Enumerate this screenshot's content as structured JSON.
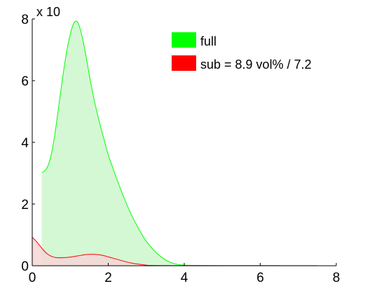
{
  "chart_data": {
    "type": "area",
    "exponent_label": "x 10",
    "xlim": [
      0,
      8
    ],
    "ylim": [
      0,
      8
    ],
    "x_ticks": [
      0,
      2,
      4,
      6,
      8
    ],
    "y_ticks": [
      0,
      2,
      4,
      6,
      8
    ],
    "grid": false,
    "legend_position": "top-right",
    "series": [
      {
        "name": "full",
        "color": "#00ff00",
        "fill": "#ccf7cc",
        "x": [
          0.25,
          0.3,
          0.4,
          0.5,
          0.6,
          0.7,
          0.8,
          0.9,
          1.0,
          1.1,
          1.2,
          1.3,
          1.4,
          1.5,
          1.6,
          1.7,
          1.8,
          1.9,
          2.0,
          2.2,
          2.4,
          2.6,
          2.8,
          3.0,
          3.2,
          3.4,
          3.6,
          3.8,
          4.0,
          4.5,
          5.0,
          6.0,
          7.0,
          7.5
        ],
        "y": [
          3.02,
          3.05,
          3.2,
          3.6,
          4.3,
          5.2,
          6.1,
          6.9,
          7.5,
          7.88,
          7.88,
          7.5,
          6.9,
          6.2,
          5.55,
          5.0,
          4.5,
          4.05,
          3.6,
          2.9,
          2.25,
          1.68,
          1.2,
          0.8,
          0.5,
          0.28,
          0.13,
          0.05,
          0.02,
          0.01,
          0.005,
          0.005,
          0.005,
          0.005
        ]
      },
      {
        "name": "sub = 8.9 vol% / 7.2",
        "color": "#ff0000",
        "fill": "#f6d6d6",
        "x": [
          0.0,
          0.1,
          0.2,
          0.3,
          0.4,
          0.5,
          0.6,
          0.8,
          1.0,
          1.2,
          1.4,
          1.5,
          1.6,
          1.8,
          2.0,
          2.2,
          2.4,
          2.6,
          2.8,
          3.0,
          3.1,
          3.5,
          4.0,
          5.0,
          6.0,
          6.5
        ],
        "y": [
          0.92,
          0.8,
          0.65,
          0.5,
          0.38,
          0.31,
          0.27,
          0.26,
          0.28,
          0.32,
          0.36,
          0.37,
          0.37,
          0.35,
          0.29,
          0.22,
          0.15,
          0.09,
          0.05,
          0.02,
          0.01,
          0.005,
          0.003,
          0.002,
          0.002,
          0.002
        ]
      }
    ]
  }
}
